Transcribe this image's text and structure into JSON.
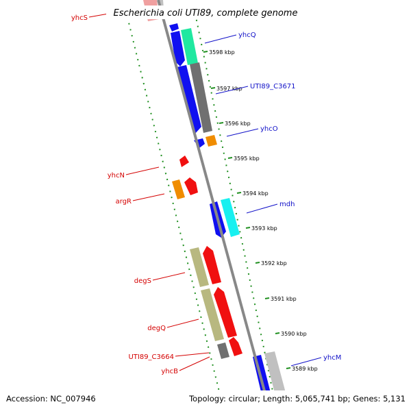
{
  "title": "Escherichia coli UTI89, complete genome",
  "footer": {
    "accession": "Accession: NC_007946",
    "topology": "Topology: circular; Length: 5,065,741 bp; Genes: 5,131"
  },
  "colors": {
    "background": "#ffffff",
    "backbone": "#888888",
    "tick_ring": "#1f8f1f",
    "reverse_label": "#d40000",
    "forward_label": "#1010c8",
    "cds_forward": "#1010f0",
    "cds_reverse": "#f01010",
    "trna": "#f08c00",
    "category_cyan": "#18f0f0",
    "category_green": "#20e8a0",
    "category_olive": "#b8b880",
    "category_dark_gray": "#707070",
    "category_light_gray": "#c0c0c0",
    "category_pink": "#f0a0a0"
  },
  "scale_labels": [
    "3598 kbp",
    "3597 kbp",
    "3596 kbp",
    "3595 kbp",
    "3594 kbp",
    "3593 kbp",
    "3592 kbp",
    "3591 kbp",
    "3590 kbp",
    "3589 kbp"
  ],
  "forward_genes": [
    "yhcQ",
    "UTI89_C3671",
    "yhcO",
    "mdh",
    "yhcM"
  ],
  "reverse_genes": [
    "yhcS",
    "yhcN",
    "argR",
    "degS",
    "degQ",
    "UTI89_C3664",
    "yhcB"
  ]
}
